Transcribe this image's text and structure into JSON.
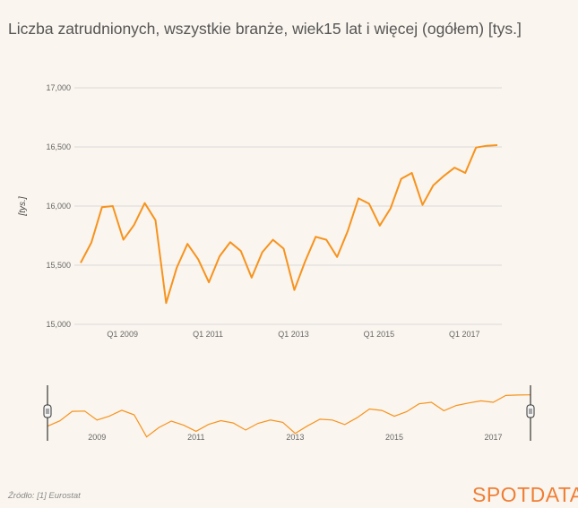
{
  "title": "Liczba zatrudnionych, wszystkie branże, wiek15 lat i więcej (ogółem) [tys.]",
  "source": "Źródło: [1] Eurostat",
  "logo": "SPOTDATA",
  "colors": {
    "line": "#f7931e",
    "grid": "#d9d9d9",
    "background": "#faf5ee",
    "logo": "#f07e35"
  },
  "chart_data": {
    "type": "line",
    "title": "Liczba zatrudnionych, wszystkie branże, wiek15 lat i więcej (ogółem) [tys.]",
    "xlabel": "",
    "ylabel": "[tys.]",
    "ylim": [
      15000,
      17000
    ],
    "yticks": [
      15000,
      15500,
      16000,
      16500,
      17000
    ],
    "ytick_labels": [
      "15,000",
      "15,500",
      "16,000",
      "16,500",
      "17,000"
    ],
    "xtick_labels": [
      "Q1 2009",
      "Q1 2011",
      "Q1 2013",
      "Q1 2015",
      "Q1 2017"
    ],
    "grid": true,
    "series": [
      {
        "x": [
          "Q1 2008",
          "Q2 2008",
          "Q3 2008",
          "Q4 2008",
          "Q1 2009",
          "Q2 2009",
          "Q3 2009",
          "Q4 2009",
          "Q1 2010",
          "Q2 2010",
          "Q3 2010",
          "Q4 2010",
          "Q1 2011",
          "Q2 2011",
          "Q3 2011",
          "Q4 2011",
          "Q1 2012",
          "Q2 2012",
          "Q3 2012",
          "Q4 2012",
          "Q1 2013",
          "Q2 2013",
          "Q3 2013",
          "Q4 2013",
          "Q1 2014",
          "Q2 2014",
          "Q3 2014",
          "Q4 2014",
          "Q1 2015",
          "Q2 2015",
          "Q3 2015",
          "Q4 2015",
          "Q1 2016",
          "Q2 2016",
          "Q3 2016",
          "Q4 2016",
          "Q1 2017",
          "Q2 2017",
          "Q3 2017",
          "Q4 2017"
        ],
        "values": [
          15520,
          15690,
          15990,
          16000,
          15715,
          15840,
          16025,
          15880,
          15180,
          15480,
          15680,
          15550,
          15355,
          15575,
          15695,
          15620,
          15395,
          15610,
          15715,
          15640,
          15290,
          15530,
          15740,
          15715,
          15570,
          15790,
          16065,
          16020,
          15835,
          15980,
          16230,
          16280,
          16010,
          16175,
          16255,
          16325,
          16280,
          16495,
          16510,
          16515
        ]
      }
    ],
    "navigator": {
      "year_labels": [
        "2009",
        "2011",
        "2013",
        "2015",
        "2017"
      ]
    }
  }
}
